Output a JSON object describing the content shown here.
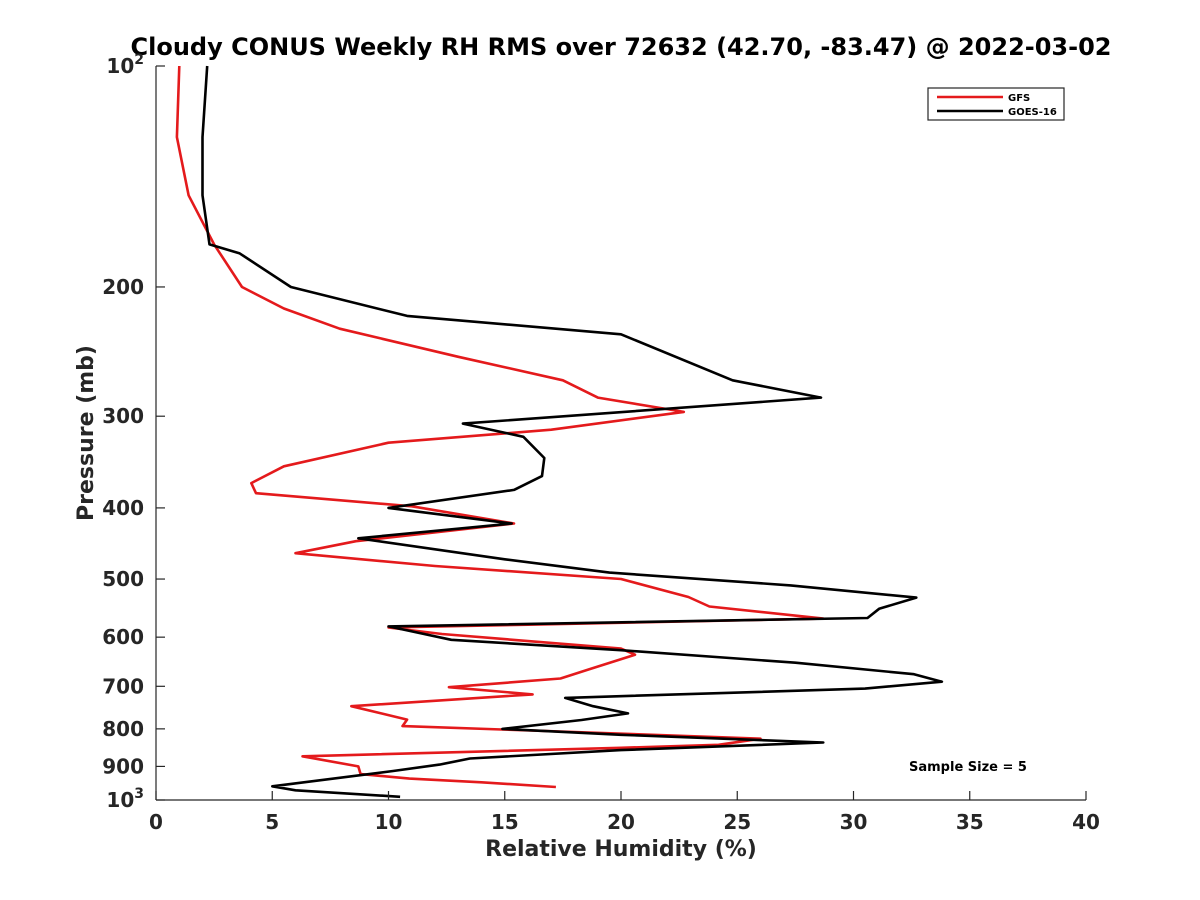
{
  "chart_data": {
    "type": "line",
    "title": "Cloudy CONUS Weekly RH RMS over 72632 (42.70, -83.47) @ 2022-03-02",
    "xlabel": "Relative Humidity (%)",
    "ylabel": "Pressure (mb)",
    "xlim": [
      0,
      40
    ],
    "ylim": [
      100,
      1000
    ],
    "y_scale": "log",
    "y_reversed": true,
    "grid": false,
    "legend_position": "top-right",
    "x_ticks": [
      0,
      5,
      10,
      15,
      20,
      25,
      30,
      35,
      40
    ],
    "y_ticks": [
      {
        "value": 100,
        "base": "10",
        "exp": "2"
      },
      {
        "value": 200,
        "label": "200"
      },
      {
        "value": 300,
        "label": "300"
      },
      {
        "value": 400,
        "label": "400"
      },
      {
        "value": 500,
        "label": "500"
      },
      {
        "value": 600,
        "label": "600"
      },
      {
        "value": 700,
        "label": "700"
      },
      {
        "value": 800,
        "label": "800"
      },
      {
        "value": 900,
        "label": "900"
      },
      {
        "value": 1000,
        "base": "10",
        "exp": "3"
      }
    ],
    "annotation": "Sample Size = 5",
    "series": [
      {
        "name": "GFS",
        "color": "#e41a1c",
        "points": [
          [
            1.0,
            100
          ],
          [
            0.9,
            125
          ],
          [
            1.4,
            150
          ],
          [
            2.5,
            175
          ],
          [
            3.7,
            200
          ],
          [
            5.5,
            214
          ],
          [
            7.9,
            228
          ],
          [
            13.0,
            249
          ],
          [
            17.5,
            268
          ],
          [
            19.0,
            283
          ],
          [
            22.7,
            296
          ],
          [
            17.0,
            313
          ],
          [
            10.0,
            326
          ],
          [
            5.5,
            351
          ],
          [
            4.1,
            370
          ],
          [
            4.3,
            382
          ],
          [
            11.0,
            398
          ],
          [
            15.4,
            420
          ],
          [
            8.6,
            444
          ],
          [
            6.0,
            461
          ],
          [
            12.0,
            480
          ],
          [
            20.0,
            500
          ],
          [
            22.9,
            529
          ],
          [
            23.8,
            545
          ],
          [
            28.7,
            566
          ],
          [
            16.0,
            577
          ],
          [
            10.0,
            582
          ],
          [
            12.3,
            594
          ],
          [
            20.0,
            622
          ],
          [
            20.6,
            634
          ],
          [
            18.6,
            664
          ],
          [
            17.4,
            683
          ],
          [
            12.6,
            702
          ],
          [
            16.2,
            718
          ],
          [
            8.4,
            745
          ],
          [
            10.8,
            777
          ],
          [
            10.6,
            793
          ],
          [
            18.0,
            808
          ],
          [
            26.0,
            825
          ],
          [
            24.2,
            841
          ],
          [
            20.0,
            849
          ],
          [
            6.3,
            872
          ],
          [
            8.7,
            900
          ],
          [
            8.8,
            922
          ],
          [
            10.9,
            935
          ],
          [
            14.0,
            946
          ],
          [
            17.2,
            960
          ]
        ]
      },
      {
        "name": "GOES-16",
        "color": "#000000",
        "points": [
          [
            2.2,
            100
          ],
          [
            2.0,
            125
          ],
          [
            2.0,
            150
          ],
          [
            2.3,
            175
          ],
          [
            3.6,
            180
          ],
          [
            5.8,
            200
          ],
          [
            10.8,
            219
          ],
          [
            20.0,
            232
          ],
          [
            24.8,
            268
          ],
          [
            28.6,
            283
          ],
          [
            13.2,
            307
          ],
          [
            15.8,
            320
          ],
          [
            16.7,
            342
          ],
          [
            16.6,
            362
          ],
          [
            15.4,
            378
          ],
          [
            10.0,
            400
          ],
          [
            15.3,
            420
          ],
          [
            8.7,
            440
          ],
          [
            15.0,
            470
          ],
          [
            19.5,
            490
          ],
          [
            27.3,
            510
          ],
          [
            32.7,
            530
          ],
          [
            31.1,
            549
          ],
          [
            30.6,
            565
          ],
          [
            10.0,
            580
          ],
          [
            12.7,
            605
          ],
          [
            20.0,
            625
          ],
          [
            27.5,
            650
          ],
          [
            32.6,
            674
          ],
          [
            33.8,
            690
          ],
          [
            30.5,
            705
          ],
          [
            17.6,
            726
          ],
          [
            18.8,
            745
          ],
          [
            20.3,
            762
          ],
          [
            18.3,
            778
          ],
          [
            14.9,
            800
          ],
          [
            20.0,
            815
          ],
          [
            28.7,
            835
          ],
          [
            20.0,
            855
          ],
          [
            13.5,
            878
          ],
          [
            12.2,
            895
          ],
          [
            10.2,
            913
          ],
          [
            5.0,
            958
          ],
          [
            6.0,
            970
          ],
          [
            10.5,
            990
          ]
        ]
      }
    ]
  }
}
